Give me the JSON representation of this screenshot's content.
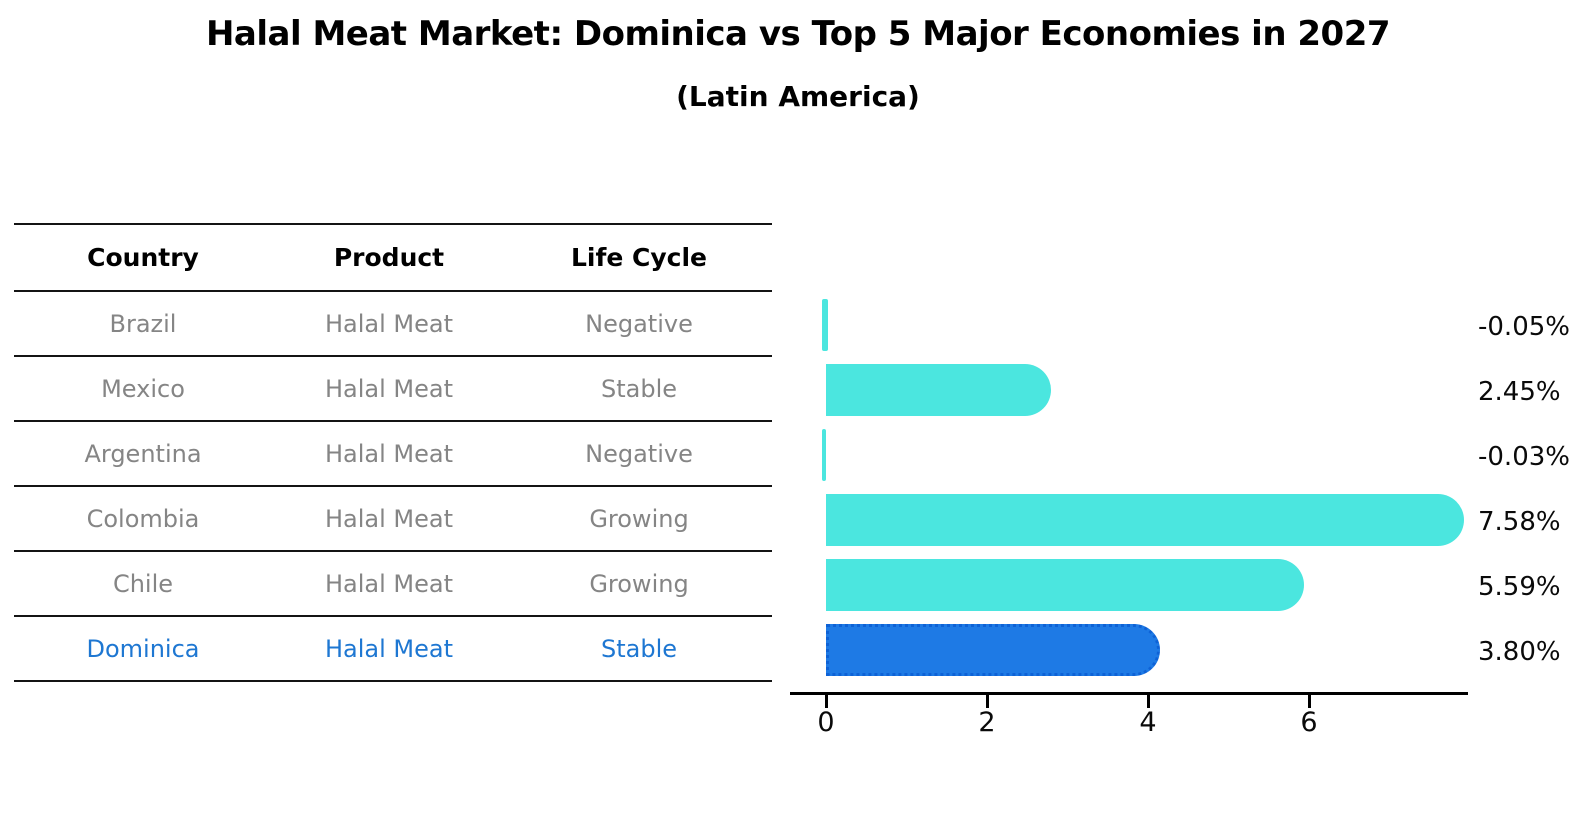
{
  "title": "Halal Meat Market: Dominica vs Top 5 Major Economies in 2027",
  "subtitle": "(Latin America)",
  "table": {
    "headers": [
      "Country",
      "Product",
      "Life Cycle"
    ],
    "rows": [
      {
        "country": "Brazil",
        "product": "Halal Meat",
        "life_cycle": "Negative"
      },
      {
        "country": "Mexico",
        "product": "Halal Meat",
        "life_cycle": "Stable"
      },
      {
        "country": "Argentina",
        "product": "Halal Meat",
        "life_cycle": "Negative"
      },
      {
        "country": "Colombia",
        "product": "Halal Meat",
        "life_cycle": "Growing"
      },
      {
        "country": "Chile",
        "product": "Halal Meat",
        "life_cycle": "Growing"
      },
      {
        "country": "Dominica",
        "product": "Halal Meat",
        "life_cycle": "Stable"
      }
    ],
    "highlighted_row": "Dominica"
  },
  "chart_data": {
    "type": "bar",
    "orientation": "horizontal",
    "title": "Halal Meat Market: Dominica vs Top 5 Major Economies in 2027",
    "subtitle": "(Latin America)",
    "categories": [
      "Brazil",
      "Mexico",
      "Argentina",
      "Colombia",
      "Chile",
      "Dominica"
    ],
    "values": [
      -0.05,
      2.45,
      -0.03,
      7.58,
      5.59,
      3.8
    ],
    "value_labels": [
      "-0.05%",
      "2.45%",
      "-0.03%",
      "7.58%",
      "5.59%",
      "3.80%"
    ],
    "unit": "%",
    "xlabel": "",
    "ylabel": "",
    "x_tick_labels": [
      "0",
      "2",
      "4",
      "6"
    ],
    "x_tick_values": [
      0,
      2,
      4,
      6
    ],
    "xlim": [
      -0.45,
      8.0
    ],
    "grid": false,
    "legend": false,
    "highlight_index": 5
  },
  "colors": {
    "bar_default": "#4BE6DF",
    "bar_highlight": "#1E7AE5",
    "highlight_text": "#1E77D2",
    "row_text": "#858585",
    "header_text": "#000000",
    "axis": "#000000"
  }
}
